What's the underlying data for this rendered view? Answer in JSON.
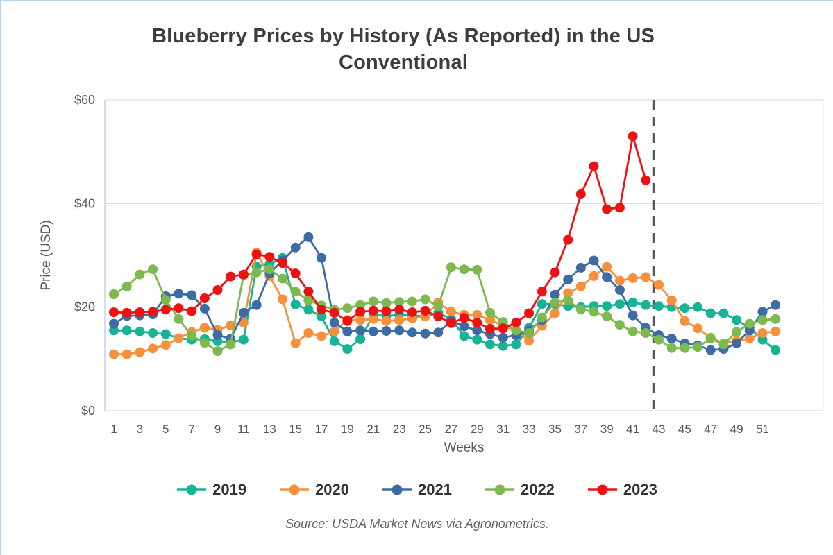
{
  "page": {
    "border_color": "#b9d6ee",
    "background": "#ffffff"
  },
  "chart": {
    "title_line1": "Blueberry Prices by History (As Reported) in the US",
    "title_line2": "Conventional",
    "ylabel": "Price (USD)",
    "xlabel": "Weeks",
    "source": "Source: USDA Market News via Agronometrics."
  },
  "chart_data": {
    "type": "line",
    "title": "Blueberry Prices by History (As Reported) in the US Conventional",
    "xlabel": "Weeks",
    "ylabel": "Price (USD)",
    "xlim": [
      1,
      52
    ],
    "ylim": [
      0,
      60
    ],
    "grid": true,
    "legend_position": "bottom",
    "x": [
      1,
      2,
      3,
      4,
      5,
      6,
      7,
      8,
      9,
      10,
      11,
      12,
      13,
      14,
      15,
      16,
      17,
      18,
      19,
      20,
      21,
      22,
      23,
      24,
      25,
      26,
      27,
      28,
      29,
      30,
      31,
      32,
      33,
      34,
      35,
      36,
      37,
      38,
      39,
      40,
      41,
      42,
      43,
      44,
      45,
      46,
      47,
      48,
      49,
      50,
      51,
      52
    ],
    "x_tick_values": [
      1,
      3,
      5,
      7,
      9,
      11,
      13,
      15,
      17,
      19,
      21,
      23,
      25,
      27,
      29,
      31,
      33,
      35,
      37,
      39,
      41,
      43,
      45,
      47,
      49,
      51
    ],
    "y_ticks": [
      {
        "value": 0,
        "label": "$0"
      },
      {
        "value": 20,
        "label": "$20"
      },
      {
        "value": 40,
        "label": "$40"
      },
      {
        "value": 60,
        "label": "$60"
      }
    ],
    "annotation": {
      "type": "vline",
      "x": 42.6,
      "style": "dashed",
      "color": "#58585a"
    },
    "series": [
      {
        "name": "2019",
        "color": "#17b394",
        "values": [
          15.5,
          15.5,
          15.3,
          15.0,
          14.8,
          14.0,
          13.7,
          13.8,
          13.4,
          13.2,
          13.7,
          27.8,
          28.3,
          29.5,
          20.5,
          19.5,
          18.2,
          13.4,
          11.9,
          13.8,
          18.5,
          18.3,
          18.5,
          18.4,
          18.2,
          18.9,
          17.7,
          14.4,
          13.7,
          12.8,
          12.5,
          12.8,
          16.0,
          20.6,
          20.6,
          20.2,
          20.0,
          20.2,
          20.2,
          20.6,
          20.9,
          20.4,
          20.2,
          20.0,
          19.8,
          20.0,
          18.8,
          18.8,
          17.5,
          16.0,
          13.7,
          11.7
        ]
      },
      {
        "name": "2020",
        "color": "#f6903d",
        "values": [
          10.9,
          10.9,
          11.3,
          12.0,
          12.7,
          14.0,
          15.2,
          16.0,
          15.6,
          16.5,
          17.0,
          30.5,
          26.0,
          21.5,
          13.0,
          15.0,
          14.4,
          15.3,
          17.5,
          17.5,
          17.7,
          17.3,
          17.5,
          17.8,
          18.2,
          20.9,
          19.1,
          18.5,
          18.5,
          17.5,
          16.4,
          15.5,
          13.5,
          16.4,
          18.8,
          22.7,
          24.0,
          26.0,
          27.8,
          25.1,
          25.6,
          25.8,
          24.3,
          21.3,
          17.3,
          15.9,
          14.1,
          13.0,
          13.5,
          13.9,
          15.0,
          15.3
        ]
      },
      {
        "name": "2021",
        "color": "#3d6ca5",
        "values": [
          16.8,
          18.3,
          18.4,
          18.6,
          22.1,
          22.6,
          22.3,
          19.7,
          14.6,
          13.9,
          18.9,
          20.4,
          26.5,
          29.0,
          31.5,
          33.5,
          29.5,
          17.0,
          15.3,
          15.5,
          15.3,
          15.4,
          15.5,
          15.1,
          14.9,
          15.1,
          17.3,
          16.3,
          15.5,
          14.8,
          14.1,
          14.6,
          15.5,
          17.5,
          22.4,
          25.3,
          27.6,
          29.0,
          25.8,
          23.3,
          18.4,
          16.0,
          14.6,
          13.9,
          13.0,
          12.6,
          11.7,
          11.9,
          13.0,
          15.5,
          19.1,
          20.4
        ]
      },
      {
        "name": "2022",
        "color": "#7cb94e",
        "values": [
          22.5,
          24.0,
          26.3,
          27.3,
          21.4,
          17.7,
          14.5,
          13.1,
          11.5,
          12.8,
          26.2,
          26.7,
          27.3,
          25.5,
          23.0,
          21.3,
          20.3,
          19.5,
          19.8,
          20.4,
          21.1,
          20.8,
          21.0,
          21.1,
          21.5,
          20.2,
          27.7,
          27.3,
          27.2,
          18.9,
          17.1,
          15.5,
          15.0,
          18.0,
          20.9,
          21.3,
          19.5,
          19.1,
          18.2,
          16.6,
          15.3,
          15.0,
          13.7,
          12.1,
          12.1,
          12.3,
          13.9,
          12.8,
          15.2,
          16.8,
          17.5,
          17.7
        ]
      },
      {
        "name": "2023",
        "color": "#ee1111",
        "values": [
          19.0,
          18.9,
          19.0,
          19.1,
          19.5,
          19.8,
          19.2,
          21.7,
          23.3,
          25.9,
          26.3,
          30.2,
          29.7,
          28.5,
          26.5,
          23.0,
          19.5,
          18.9,
          17.3,
          19.1,
          19.3,
          19.2,
          19.5,
          19.0,
          19.3,
          18.2,
          16.9,
          17.9,
          17.0,
          15.8,
          15.9,
          17.0,
          18.8,
          23.0,
          26.7,
          33.0,
          41.8,
          47.2,
          38.9,
          39.2,
          53.0,
          44.5,
          null,
          null,
          null,
          null,
          null,
          null,
          null,
          null,
          null,
          null
        ]
      }
    ]
  }
}
